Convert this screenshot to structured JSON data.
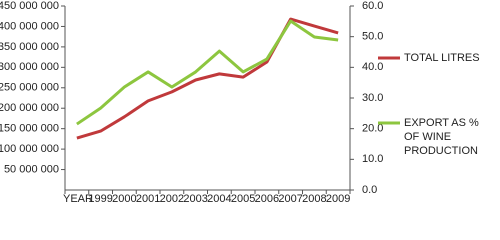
{
  "chart_data": {
    "type": "line",
    "xlabel": "YEAR",
    "categories": [
      null,
      "1999",
      "2000",
      "2001",
      "2002",
      "2003",
      "2004",
      "2005",
      "2006",
      "2007",
      "2008",
      "2009"
    ],
    "series": [
      {
        "name": "TOTAL LITRES",
        "color": "#c0393b",
        "axis": "y",
        "values": [
          127000000,
          144000000,
          179000000,
          218000000,
          240000000,
          269000000,
          284000000,
          276000000,
          313000000,
          418000000,
          401000000,
          384000000
        ]
      },
      {
        "name": "EXPORT AS % OF WINE PRODUCTION",
        "color": "#8dc63f",
        "axis": "y2",
        "values": [
          21.5,
          26.7,
          33.6,
          38.5,
          33.6,
          38.5,
          45.3,
          38.5,
          42.7,
          55.1,
          49.9,
          48.9
        ]
      }
    ],
    "ylim": [
      0,
      450000000
    ],
    "yticks": [
      {
        "value": 50000000,
        "label": "50 000 000"
      },
      {
        "value": 100000000,
        "label": "100 000 000"
      },
      {
        "value": 150000000,
        "label": "150 000 000"
      },
      {
        "value": 200000000,
        "label": "200 000 000"
      },
      {
        "value": 250000000,
        "label": "250 000 000"
      },
      {
        "value": 300000000,
        "label": "300 000 000"
      },
      {
        "value": 350000000,
        "label": "350 000 000"
      },
      {
        "value": 400000000,
        "label": "400 000 000"
      },
      {
        "value": 450000000,
        "label": "450 000 000"
      }
    ],
    "y2lim": [
      0,
      60
    ],
    "y2ticks": [
      {
        "value": 0,
        "label": "0.0"
      },
      {
        "value": 10,
        "label": "10.0"
      },
      {
        "value": 20,
        "label": "20.0"
      },
      {
        "value": 30,
        "label": "30.0"
      },
      {
        "value": 40,
        "label": "40.0"
      },
      {
        "value": 50,
        "label": "50.0"
      },
      {
        "value": 60,
        "label": "60.0"
      }
    ],
    "grid": false,
    "legend": "right"
  }
}
